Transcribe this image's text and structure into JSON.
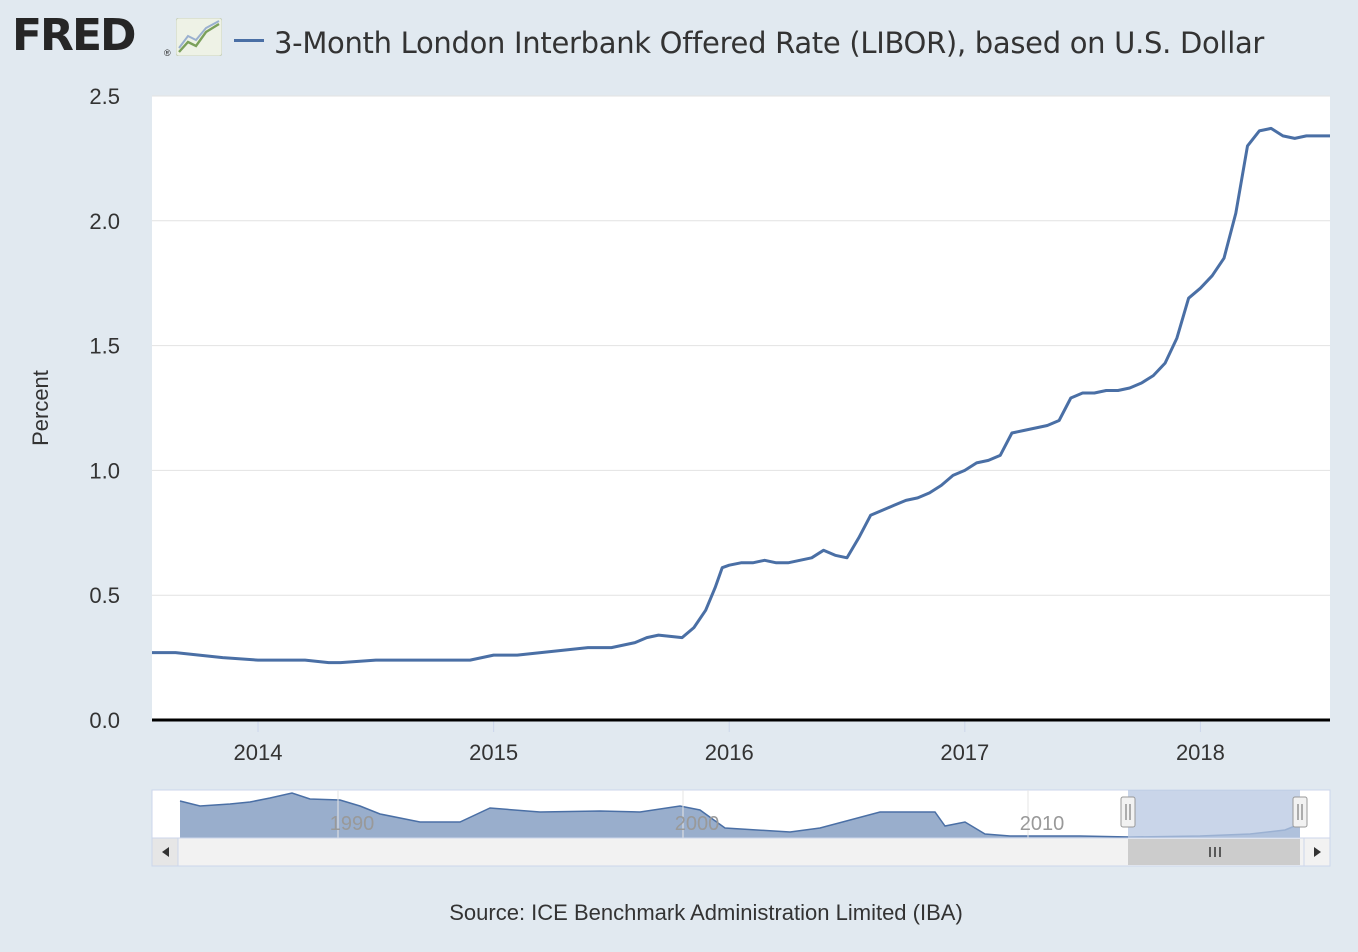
{
  "header": {
    "logo_text": "FRED",
    "logo_reg": "®",
    "logo_icon": "line-chart-icon",
    "title": "3-Month London Interbank Offered Rate (LIBOR), based on U.S. Dollar"
  },
  "source": "Source: ICE Benchmark Administration Limited (IBA)",
  "colors": {
    "background": "#e1e9f0",
    "plot_bg": "#ffffff",
    "series": "#4a6fa5",
    "navigator_fill": "#8ea5c6",
    "navigator_selection": "#b7c7e2"
  },
  "chart_data": {
    "type": "line",
    "title": "3-Month London Interbank Offered Rate (LIBOR), based on U.S. Dollar",
    "xlabel": "",
    "ylabel": "Percent",
    "xlim": [
      2013.55,
      2018.55
    ],
    "ylim": [
      0,
      2.5
    ],
    "yticks": [
      "0.0",
      "0.5",
      "1.0",
      "1.5",
      "2.0",
      "2.5"
    ],
    "xticks": [
      "2014",
      "2015",
      "2016",
      "2017",
      "2018"
    ],
    "grid": true,
    "series": [
      {
        "name": "3-Month London Interbank Offered Rate (LIBOR), based on U.S. Dollar",
        "x": [
          2013.55,
          2013.65,
          2013.75,
          2013.85,
          2014.0,
          2014.1,
          2014.2,
          2014.3,
          2014.35,
          2014.5,
          2014.6,
          2014.75,
          2014.9,
          2015.0,
          2015.1,
          2015.2,
          2015.3,
          2015.4,
          2015.5,
          2015.6,
          2015.65,
          2015.7,
          2015.8,
          2015.85,
          2015.9,
          2015.94,
          2015.97,
          2016.0,
          2016.05,
          2016.1,
          2016.15,
          2016.2,
          2016.25,
          2016.3,
          2016.35,
          2016.4,
          2016.45,
          2016.5,
          2016.55,
          2016.6,
          2016.65,
          2016.7,
          2016.75,
          2016.8,
          2016.85,
          2016.9,
          2016.95,
          2017.0,
          2017.05,
          2017.1,
          2017.15,
          2017.2,
          2017.25,
          2017.3,
          2017.35,
          2017.4,
          2017.45,
          2017.5,
          2017.55,
          2017.6,
          2017.65,
          2017.7,
          2017.75,
          2017.8,
          2017.85,
          2017.9,
          2017.95,
          2018.0,
          2018.05,
          2018.1,
          2018.15,
          2018.2,
          2018.25,
          2018.3,
          2018.35,
          2018.4,
          2018.45,
          2018.5,
          2018.55
        ],
        "values": [
          0.27,
          0.27,
          0.26,
          0.25,
          0.24,
          0.24,
          0.24,
          0.23,
          0.23,
          0.24,
          0.24,
          0.24,
          0.24,
          0.26,
          0.26,
          0.27,
          0.28,
          0.29,
          0.29,
          0.31,
          0.33,
          0.34,
          0.33,
          0.37,
          0.44,
          0.53,
          0.61,
          0.62,
          0.63,
          0.63,
          0.64,
          0.63,
          0.63,
          0.64,
          0.65,
          0.68,
          0.66,
          0.65,
          0.73,
          0.82,
          0.84,
          0.86,
          0.88,
          0.89,
          0.91,
          0.94,
          0.98,
          1.0,
          1.03,
          1.04,
          1.06,
          1.15,
          1.16,
          1.17,
          1.18,
          1.2,
          1.29,
          1.31,
          1.31,
          1.32,
          1.32,
          1.33,
          1.35,
          1.38,
          1.43,
          1.53,
          1.69,
          1.73,
          1.78,
          1.85,
          2.03,
          2.3,
          2.36,
          2.37,
          2.34,
          2.33,
          2.34,
          2.34,
          2.34
        ]
      }
    ],
    "navigator": {
      "xticks": [
        "1990",
        "2000",
        "2010"
      ],
      "selection": [
        2013.55,
        2018.55
      ]
    }
  }
}
